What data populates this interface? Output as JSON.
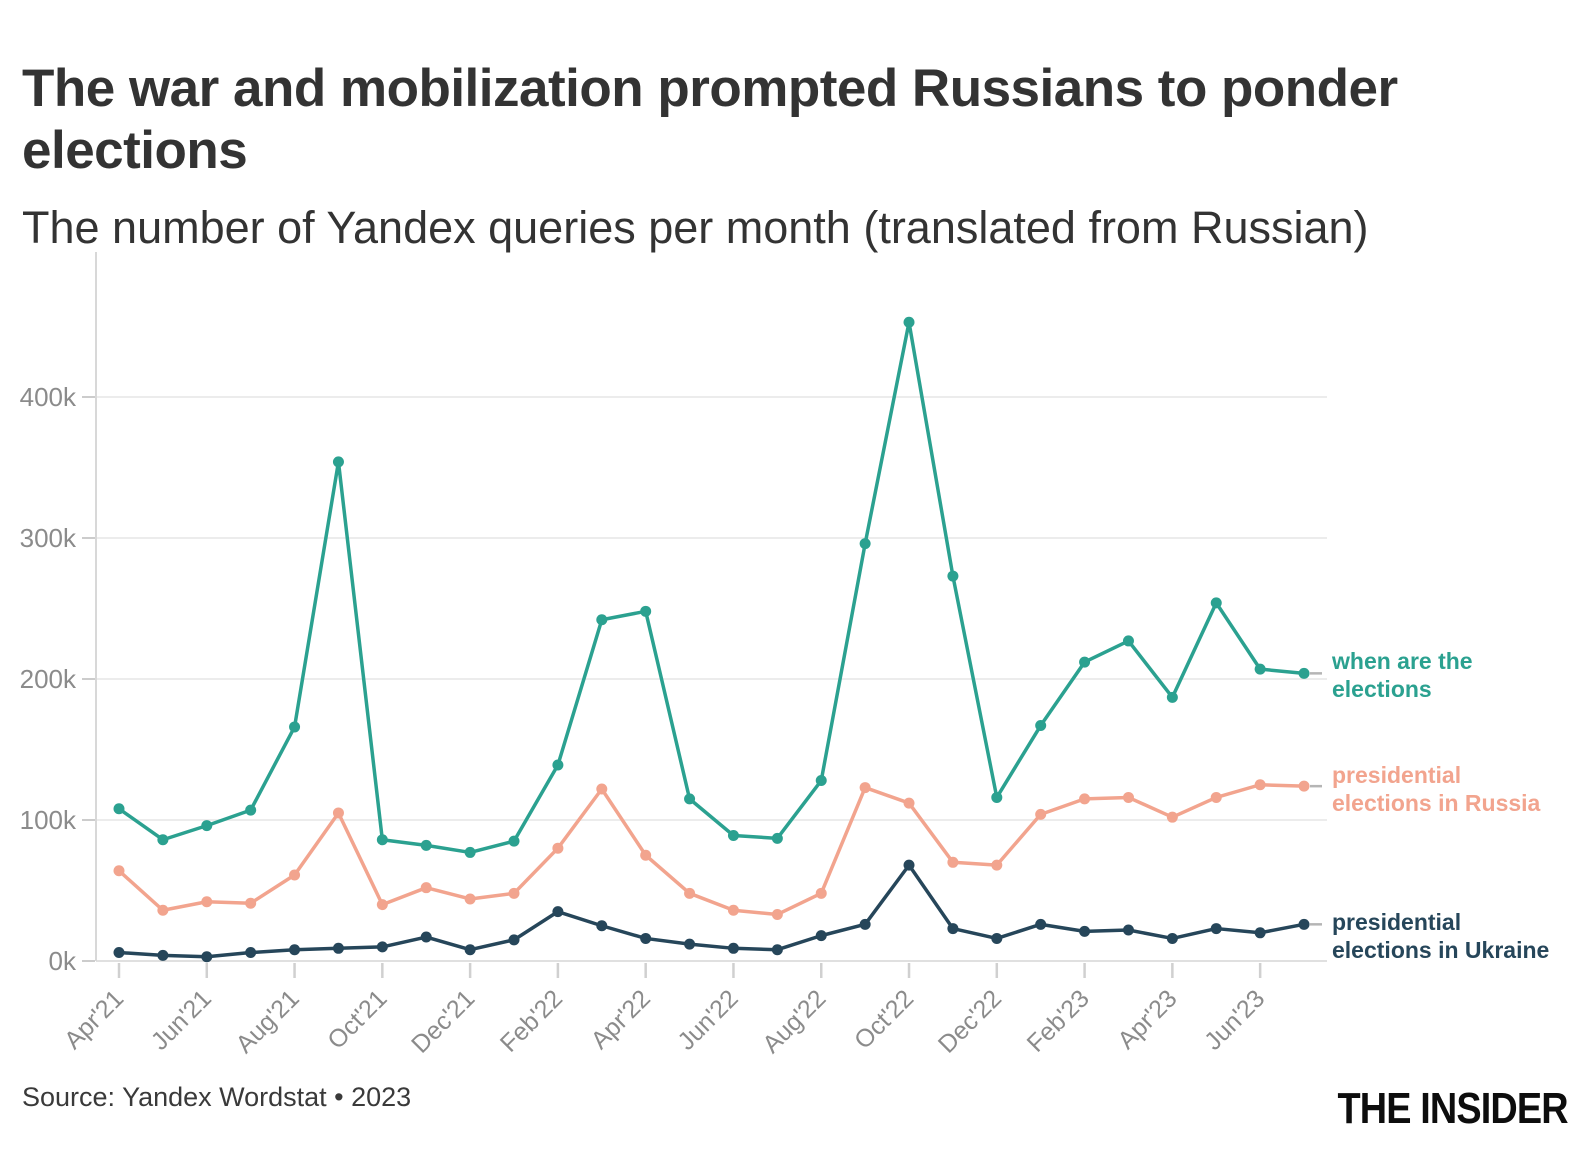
{
  "header": {
    "title": "The war and mobilization prompted Russians to ponder elections",
    "subtitle": "The number of Yandex queries per month (translated from Russian)"
  },
  "footer": {
    "source": "Source: Yandex Wordstat • 2023",
    "logo": "THE INSIDER"
  },
  "chart_data": {
    "type": "line",
    "title": "The war and mobilization prompted Russians to ponder elections",
    "subtitle": "The number of Yandex queries per month (translated from Russian)",
    "unit": "queries per month, thousands",
    "ylim": [
      0,
      500
    ],
    "grid": "horizontal",
    "legend_position": "right of line ends",
    "months": [
      "Apr'21",
      "May'21",
      "Jun'21",
      "Jul'21",
      "Aug'21",
      "Sep'21",
      "Oct'21",
      "Nov'21",
      "Dec'21",
      "Jan'22",
      "Feb'22",
      "Mar'22",
      "Apr'22",
      "May'22",
      "Jun'22",
      "Jul'22",
      "Aug'22",
      "Sep'22",
      "Oct'22",
      "Nov'22",
      "Dec'22",
      "Jan'23",
      "Feb'23",
      "Mar'23",
      "Apr'23",
      "May'23",
      "Jun'23",
      "Jul'23"
    ],
    "x_axis": {
      "labels": [
        "Apr'21",
        "Jun'21",
        "Aug'21",
        "Oct'21",
        "Dec'21",
        "Feb'22",
        "Apr'22",
        "Jun'22",
        "Aug'22",
        "Oct'22",
        "Dec'22",
        "Feb'23",
        "Apr'23",
        "Jun'23"
      ]
    },
    "y_axis": {
      "ticks": [
        {
          "label": "0k",
          "value": 0
        },
        {
          "label": "100k",
          "value": 100
        },
        {
          "label": "200k",
          "value": 200
        },
        {
          "label": "300k",
          "value": 300
        },
        {
          "label": "400k",
          "value": 400
        }
      ]
    },
    "series": [
      {
        "name": "when are the elections",
        "label_lines": [
          "when are the",
          "elections"
        ],
        "color": "#2ba190",
        "values": [
          108,
          86,
          96,
          107,
          166,
          354,
          86,
          82,
          77,
          85,
          139,
          242,
          248,
          115,
          89,
          87,
          128,
          296,
          453,
          273,
          116,
          167,
          212,
          227,
          187,
          254,
          207,
          204
        ]
      },
      {
        "name": "presidential elections in Russia",
        "label_lines": [
          "presidential",
          "elections in Russia"
        ],
        "color": "#f2a48e",
        "values": [
          64,
          36,
          42,
          41,
          61,
          105,
          40,
          52,
          44,
          48,
          80,
          122,
          75,
          48,
          36,
          33,
          48,
          123,
          112,
          70,
          68,
          104,
          115,
          116,
          102,
          116,
          125,
          124
        ]
      },
      {
        "name": "presidential elections in Ukraine",
        "label_lines": [
          "presidential",
          "elections in Ukraine"
        ],
        "color": "#26465a",
        "values": [
          6,
          4,
          3,
          6,
          8,
          9,
          10,
          17,
          8,
          15,
          35,
          25,
          16,
          12,
          9,
          8,
          18,
          26,
          68,
          23,
          16,
          26,
          21,
          22,
          16,
          23,
          20,
          26
        ]
      }
    ]
  }
}
